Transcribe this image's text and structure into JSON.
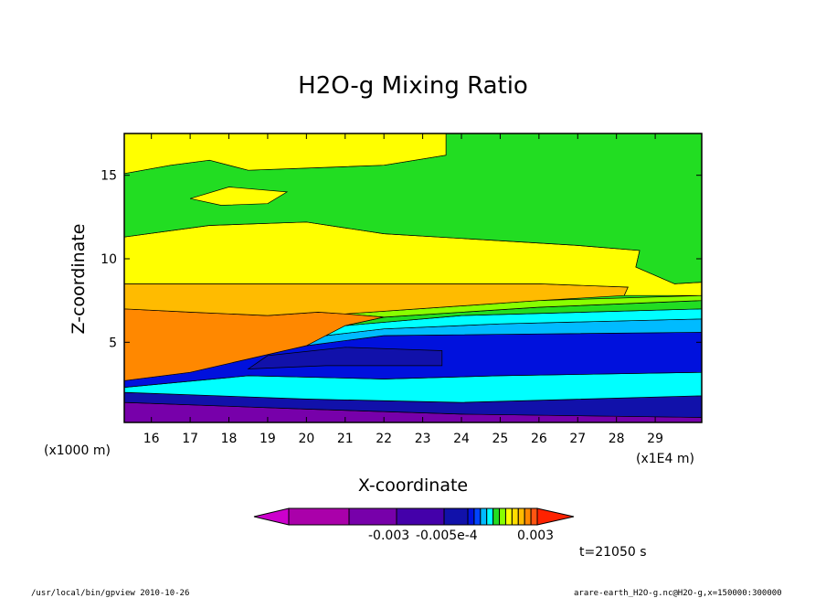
{
  "chart_data": {
    "type": "heatmap",
    "title": "H2O-g Mixing Ratio",
    "xlabel": "X-coordinate",
    "ylabel": "Z-coordinate",
    "x_unit_left": "(x1000 m)",
    "x_unit_right": "(x1E4 m)",
    "x_ticks": [
      "16",
      "17",
      "18",
      "19",
      "20",
      "21",
      "22",
      "23",
      "24",
      "25",
      "26",
      "27",
      "28",
      "29"
    ],
    "y_ticks": [
      "5",
      "10",
      "15"
    ],
    "xlim": [
      15.3,
      30.2
    ],
    "ylim": [
      0.2,
      17.5
    ],
    "grid": false,
    "colorbar": {
      "colors": [
        "#cc00cc",
        "#aa00aa",
        "#7700aa",
        "#4400aa",
        "#1111aa",
        "#0011dd",
        "#0044ff",
        "#00bbff",
        "#00ffff",
        "#22dd22",
        "#88ff00",
        "#ffff00",
        "#ffdd00",
        "#ffbb00",
        "#ff8800",
        "#ff5511",
        "#ff2200"
      ],
      "labels": [
        "-0.003",
        "-0.005e-4",
        "0.003"
      ]
    },
    "bands": [
      {
        "name": "lower-violet",
        "color": "#7700aa",
        "points": [
          [
            15.3,
            0.2
          ],
          [
            30.2,
            0.2
          ],
          [
            30.2,
            0.5
          ],
          [
            24,
            0.7
          ],
          [
            20,
            1.0
          ],
          [
            15.3,
            1.4
          ]
        ]
      },
      {
        "name": "dark-blue-base",
        "color": "#1111aa",
        "points": [
          [
            15.3,
            1.4
          ],
          [
            20,
            1.0
          ],
          [
            24,
            0.7
          ],
          [
            30.2,
            0.5
          ],
          [
            30.2,
            1.8
          ],
          [
            24,
            1.4
          ],
          [
            20,
            1.6
          ],
          [
            15.3,
            2.0
          ]
        ]
      },
      {
        "name": "cyan-band",
        "color": "#00ffff",
        "points": [
          [
            15.3,
            2.0
          ],
          [
            20,
            1.6
          ],
          [
            24,
            1.4
          ],
          [
            30.2,
            1.8
          ],
          [
            30.2,
            3.2
          ],
          [
            25,
            3.0
          ],
          [
            22,
            2.8
          ],
          [
            18.5,
            3.0
          ],
          [
            15.3,
            2.3
          ]
        ]
      },
      {
        "name": "blue-band",
        "color": "#0011dd",
        "points": [
          [
            15.3,
            2.3
          ],
          [
            18.5,
            3.0
          ],
          [
            22,
            2.8
          ],
          [
            25,
            3.0
          ],
          [
            30.2,
            3.2
          ],
          [
            30.2,
            5.6
          ],
          [
            26,
            5.5
          ],
          [
            22,
            5.4
          ],
          [
            20,
            4.8
          ],
          [
            17,
            3.2
          ],
          [
            15.3,
            2.7
          ]
        ]
      },
      {
        "name": "navy-core",
        "color": "#1111aa",
        "points": [
          [
            18.5,
            3.4
          ],
          [
            20.5,
            3.6
          ],
          [
            23.5,
            3.6
          ],
          [
            23.5,
            4.5
          ],
          [
            21,
            4.7
          ],
          [
            19,
            4.2
          ]
        ]
      },
      {
        "name": "light-blue-band",
        "color": "#00bbff",
        "points": [
          [
            20,
            4.8
          ],
          [
            22,
            5.4
          ],
          [
            26,
            5.5
          ],
          [
            30.2,
            5.6
          ],
          [
            30.2,
            6.4
          ],
          [
            25,
            6.1
          ],
          [
            22,
            5.8
          ],
          [
            20.5,
            5.4
          ]
        ]
      },
      {
        "name": "cyan-upper",
        "color": "#00ffff",
        "points": [
          [
            20.5,
            5.4
          ],
          [
            22,
            5.8
          ],
          [
            25,
            6.1
          ],
          [
            30.2,
            6.4
          ],
          [
            30.2,
            7.0
          ],
          [
            24,
            6.6
          ],
          [
            21,
            6.0
          ]
        ]
      },
      {
        "name": "green-upper",
        "color": "#22dd22",
        "points": [
          [
            21,
            6.0
          ],
          [
            24,
            6.6
          ],
          [
            30.2,
            7.0
          ],
          [
            30.2,
            7.5
          ],
          [
            26,
            7.1
          ],
          [
            22,
            6.5
          ]
        ]
      },
      {
        "name": "lime-band",
        "color": "#88ff00",
        "points": [
          [
            22,
            6.5
          ],
          [
            26,
            7.1
          ],
          [
            30.2,
            7.5
          ],
          [
            30.2,
            7.8
          ],
          [
            26,
            7.5
          ],
          [
            21,
            6.7
          ]
        ]
      },
      {
        "name": "orange-wedge",
        "color": "#ff8800",
        "points": [
          [
            15.3,
            2.7
          ],
          [
            17,
            3.2
          ],
          [
            20,
            4.8
          ],
          [
            20.5,
            5.4
          ],
          [
            21,
            6.0
          ],
          [
            22,
            6.5
          ],
          [
            21,
            6.7
          ],
          [
            20.3,
            6.8
          ],
          [
            19,
            6.6
          ],
          [
            17,
            6.8
          ],
          [
            15.3,
            7.0
          ]
        ]
      },
      {
        "name": "light-orange-band",
        "color": "#ffbb00",
        "points": [
          [
            15.3,
            7.0
          ],
          [
            17,
            6.8
          ],
          [
            19,
            6.6
          ],
          [
            20.3,
            6.8
          ],
          [
            21,
            6.7
          ],
          [
            26,
            7.5
          ],
          [
            28.2,
            7.8
          ],
          [
            28.3,
            8.3
          ],
          [
            26,
            8.5
          ],
          [
            15.3,
            8.5
          ]
        ]
      },
      {
        "name": "yellow-mid",
        "color": "#ffff00",
        "points": [
          [
            15.3,
            8.5
          ],
          [
            26,
            8.5
          ],
          [
            28.3,
            8.3
          ],
          [
            28.2,
            7.8
          ],
          [
            30.2,
            7.8
          ],
          [
            30.2,
            8.6
          ],
          [
            29.5,
            8.5
          ],
          [
            28.5,
            9.5
          ],
          [
            28.6,
            10.5
          ],
          [
            27,
            10.8
          ],
          [
            22,
            11.5
          ],
          [
            20,
            12.2
          ],
          [
            17.5,
            12.0
          ],
          [
            15.3,
            11.3
          ]
        ]
      },
      {
        "name": "green-mid",
        "color": "#22dd22",
        "points": [
          [
            15.3,
            11.3
          ],
          [
            17.5,
            12.0
          ],
          [
            20,
            12.2
          ],
          [
            22,
            11.5
          ],
          [
            27,
            10.8
          ],
          [
            28.6,
            10.5
          ],
          [
            28.5,
            9.5
          ],
          [
            29.5,
            8.5
          ],
          [
            30.2,
            8.6
          ],
          [
            30.2,
            17.5
          ],
          [
            23.6,
            17.5
          ],
          [
            23.6,
            16.2
          ],
          [
            22,
            15.6
          ],
          [
            18.5,
            15.3
          ],
          [
            17.5,
            15.9
          ],
          [
            16.5,
            15.6
          ],
          [
            15.3,
            15.1
          ]
        ]
      },
      {
        "name": "yellow-top",
        "color": "#ffff00",
        "points": [
          [
            15.3,
            15.1
          ],
          [
            16.5,
            15.6
          ],
          [
            17.5,
            15.9
          ],
          [
            18.5,
            15.3
          ],
          [
            22,
            15.6
          ],
          [
            23.6,
            16.2
          ],
          [
            23.6,
            17.5
          ],
          [
            15.3,
            17.5
          ]
        ]
      },
      {
        "name": "yellow-upper",
        "color": "#ffff00",
        "points": [
          [
            17,
            13.6
          ],
          [
            18,
            14.3
          ],
          [
            19.5,
            14.0
          ],
          [
            19,
            13.3
          ],
          [
            17.8,
            13.2
          ]
        ]
      }
    ]
  },
  "footer": {
    "time_label": "t=21050 s",
    "path_label": "/usr/local/bin/gpview  2010-10-26",
    "file_label": "arare-earth_H2O-g.nc@H2O-g,x=150000:300000"
  }
}
